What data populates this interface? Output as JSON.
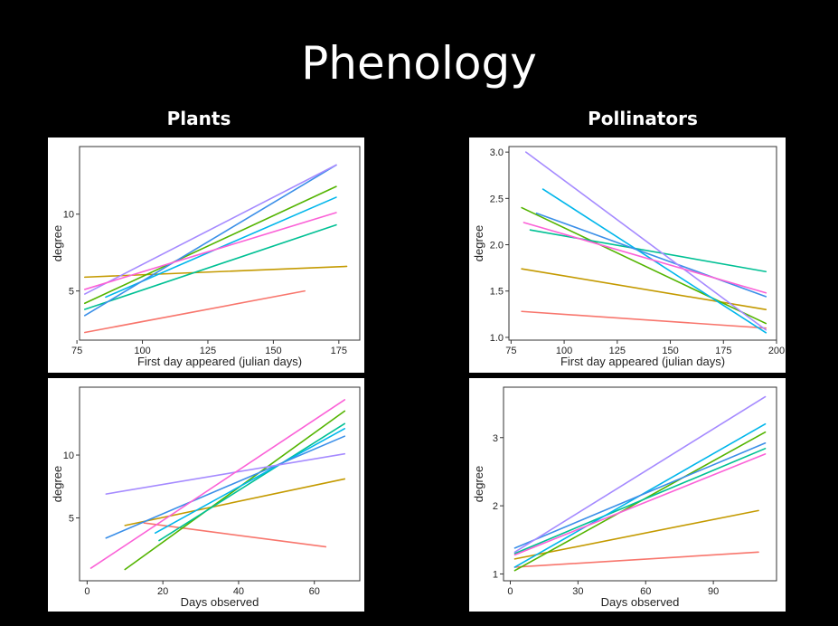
{
  "slide": {
    "title": "Phenology",
    "columns": {
      "left": "Plants",
      "right": "Pollinators"
    }
  },
  "chart_data": [
    {
      "type": "line",
      "xlabel": "First day appeared (julian days)",
      "ylabel": "degree",
      "xlim": [
        76,
        183
      ],
      "ylim": [
        1.8,
        14.4
      ],
      "xticks": [
        75,
        100,
        125,
        150,
        175
      ],
      "yticks": [
        5,
        10
      ],
      "series": [
        {
          "color": "#f8766d",
          "x": [
            78,
            162
          ],
          "y": [
            2.3,
            5.0
          ]
        },
        {
          "color": "#c49a00",
          "x": [
            78,
            178
          ],
          "y": [
            5.9,
            6.6
          ]
        },
        {
          "color": "#53b400",
          "x": [
            78,
            174
          ],
          "y": [
            4.2,
            11.8
          ]
        },
        {
          "color": "#00c094",
          "x": [
            78,
            174
          ],
          "y": [
            3.8,
            9.3
          ]
        },
        {
          "color": "#00b6eb",
          "x": [
            86,
            174
          ],
          "y": [
            4.6,
            11.1
          ]
        },
        {
          "color": "#3b8fe8",
          "x": [
            78,
            174
          ],
          "y": [
            3.4,
            13.2
          ]
        },
        {
          "color": "#a58aff",
          "x": [
            78,
            174
          ],
          "y": [
            4.8,
            13.2
          ]
        },
        {
          "color": "#fb61d7",
          "x": [
            78,
            174
          ],
          "y": [
            5.1,
            10.1
          ]
        }
      ]
    },
    {
      "type": "line",
      "xlabel": "First day appeared (julian days)",
      "ylabel": "degree",
      "xlim": [
        74,
        200
      ],
      "ylim": [
        0.97,
        3.06
      ],
      "xticks": [
        75,
        100,
        125,
        150,
        175,
        200
      ],
      "yticks": [
        1.0,
        1.5,
        2.0,
        2.5,
        3.0
      ],
      "series": [
        {
          "color": "#f8766d",
          "x": [
            80,
            195
          ],
          "y": [
            1.28,
            1.1
          ]
        },
        {
          "color": "#c49a00",
          "x": [
            80,
            195
          ],
          "y": [
            1.74,
            1.3
          ]
        },
        {
          "color": "#53b400",
          "x": [
            80,
            195
          ],
          "y": [
            2.4,
            1.15
          ]
        },
        {
          "color": "#00c094",
          "x": [
            84,
            195
          ],
          "y": [
            2.16,
            1.71
          ]
        },
        {
          "color": "#00b6eb",
          "x": [
            90,
            195
          ],
          "y": [
            2.6,
            1.05
          ]
        },
        {
          "color": "#3b8fe8",
          "x": [
            87,
            195
          ],
          "y": [
            2.34,
            1.44
          ]
        },
        {
          "color": "#a58aff",
          "x": [
            82,
            195
          ],
          "y": [
            3.0,
            1.08
          ]
        },
        {
          "color": "#fb61d7",
          "x": [
            81,
            195
          ],
          "y": [
            2.24,
            1.48
          ]
        }
      ]
    },
    {
      "type": "line",
      "xlabel": "Days observed",
      "ylabel": "degree",
      "xlim": [
        -2,
        72
      ],
      "ylim": [
        0,
        15.4
      ],
      "xticks": [
        0,
        20,
        40,
        60
      ],
      "yticks": [
        5,
        10
      ],
      "series": [
        {
          "color": "#f8766d",
          "x": [
            15,
            63
          ],
          "y": [
            4.6,
            2.7
          ]
        },
        {
          "color": "#c49a00",
          "x": [
            10,
            68
          ],
          "y": [
            4.4,
            8.1
          ]
        },
        {
          "color": "#53b400",
          "x": [
            10,
            68
          ],
          "y": [
            0.9,
            13.5
          ]
        },
        {
          "color": "#00c094",
          "x": [
            19,
            68
          ],
          "y": [
            3.2,
            12.5
          ]
        },
        {
          "color": "#00b6eb",
          "x": [
            18,
            68
          ],
          "y": [
            3.8,
            12.1
          ]
        },
        {
          "color": "#3b8fe8",
          "x": [
            5,
            68
          ],
          "y": [
            3.4,
            11.5
          ]
        },
        {
          "color": "#a58aff",
          "x": [
            5,
            68
          ],
          "y": [
            6.9,
            10.1
          ]
        },
        {
          "color": "#fb61d7",
          "x": [
            1,
            68
          ],
          "y": [
            1.0,
            14.4
          ]
        }
      ]
    },
    {
      "type": "line",
      "xlabel": "Days observed",
      "ylabel": "degree",
      "xlim": [
        -3,
        118
      ],
      "ylim": [
        0.9,
        3.74
      ],
      "xticks": [
        0,
        30,
        60,
        90
      ],
      "yticks": [
        1,
        2,
        3
      ],
      "series": [
        {
          "color": "#f8766d",
          "x": [
            2,
            110
          ],
          "y": [
            1.1,
            1.32
          ]
        },
        {
          "color": "#c49a00",
          "x": [
            2,
            110
          ],
          "y": [
            1.22,
            1.93
          ]
        },
        {
          "color": "#53b400",
          "x": [
            2,
            113
          ],
          "y": [
            1.05,
            3.08
          ]
        },
        {
          "color": "#00c094",
          "x": [
            2,
            113
          ],
          "y": [
            1.3,
            2.84
          ]
        },
        {
          "color": "#00b6eb",
          "x": [
            2,
            113
          ],
          "y": [
            1.1,
            3.2
          ]
        },
        {
          "color": "#3b8fe8",
          "x": [
            2,
            113
          ],
          "y": [
            1.38,
            2.92
          ]
        },
        {
          "color": "#a58aff",
          "x": [
            2,
            113
          ],
          "y": [
            1.32,
            3.6
          ]
        },
        {
          "color": "#fb61d7",
          "x": [
            2,
            113
          ],
          "y": [
            1.28,
            2.76
          ]
        }
      ]
    }
  ]
}
